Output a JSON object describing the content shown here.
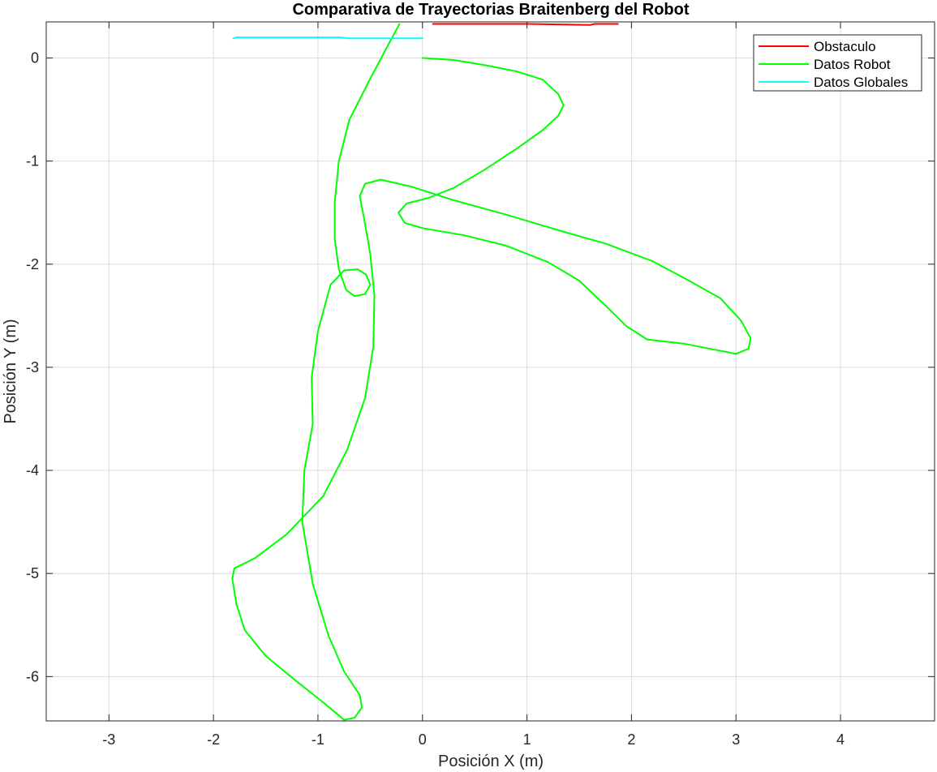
{
  "chart_data": {
    "type": "line",
    "title": "Comparativa de Trayectorias Braitenberg del Robot",
    "xlabel": "Posición X (m)",
    "ylabel": "Posición Y (m)",
    "xlim": [
      -3.6,
      4.9
    ],
    "ylim": [
      -6.43,
      0.35
    ],
    "xticks": [
      -3,
      -2,
      -1,
      0,
      1,
      2,
      3,
      4
    ],
    "yticks": [
      0,
      -1,
      -2,
      -3,
      -4,
      -5,
      -6
    ],
    "xtick_labels": [
      "-3",
      "-2",
      "-1",
      "0",
      "1",
      "2",
      "3",
      "4"
    ],
    "ytick_labels": [
      "0",
      "-1",
      "-2",
      "-3",
      "-4",
      "-5",
      "-6"
    ],
    "grid": true,
    "legend_position": "top-right",
    "series": [
      {
        "name": "Obstaculo",
        "color": "#ff0000",
        "points": [
          [
            0.1,
            0.33
          ],
          [
            1.0,
            0.33
          ],
          [
            1.6,
            0.32
          ],
          [
            1.65,
            0.33
          ],
          [
            1.87,
            0.33
          ]
        ]
      },
      {
        "name": "Datos Robot",
        "color": "#00ff00",
        "points": [
          [
            0.0,
            0.0
          ],
          [
            0.3,
            -0.02
          ],
          [
            0.6,
            -0.07
          ],
          [
            0.9,
            -0.13
          ],
          [
            1.15,
            -0.21
          ],
          [
            1.3,
            -0.35
          ],
          [
            1.35,
            -0.46
          ],
          [
            1.3,
            -0.56
          ],
          [
            1.15,
            -0.7
          ],
          [
            0.9,
            -0.88
          ],
          [
            0.6,
            -1.08
          ],
          [
            0.3,
            -1.26
          ],
          [
            0.05,
            -1.36
          ],
          [
            -0.15,
            -1.41
          ],
          [
            -0.23,
            -1.5
          ],
          [
            -0.17,
            -1.6
          ],
          [
            0.0,
            -1.65
          ],
          [
            0.4,
            -1.72
          ],
          [
            0.8,
            -1.82
          ],
          [
            1.2,
            -1.98
          ],
          [
            1.5,
            -2.16
          ],
          [
            1.75,
            -2.4
          ],
          [
            1.95,
            -2.6
          ],
          [
            2.15,
            -2.73
          ],
          [
            2.5,
            -2.77
          ],
          [
            2.8,
            -2.83
          ],
          [
            3.0,
            -2.87
          ],
          [
            3.12,
            -2.82
          ],
          [
            3.14,
            -2.72
          ],
          [
            3.05,
            -2.55
          ],
          [
            2.85,
            -2.33
          ],
          [
            2.55,
            -2.16
          ],
          [
            2.2,
            -1.97
          ],
          [
            1.75,
            -1.8
          ],
          [
            1.4,
            -1.7
          ],
          [
            0.8,
            -1.52
          ],
          [
            0.3,
            -1.38
          ],
          [
            -0.1,
            -1.25
          ],
          [
            -0.4,
            -1.18
          ],
          [
            -0.55,
            -1.22
          ],
          [
            -0.6,
            -1.34
          ],
          [
            -0.56,
            -1.55
          ],
          [
            -0.5,
            -1.9
          ],
          [
            -0.46,
            -2.3
          ],
          [
            -0.47,
            -2.8
          ],
          [
            -0.55,
            -3.3
          ],
          [
            -0.72,
            -3.8
          ],
          [
            -0.95,
            -4.25
          ],
          [
            -1.3,
            -4.62
          ],
          [
            -1.6,
            -4.85
          ],
          [
            -1.8,
            -4.95
          ],
          [
            -1.82,
            -5.05
          ],
          [
            -1.78,
            -5.3
          ],
          [
            -1.7,
            -5.55
          ],
          [
            -1.5,
            -5.8
          ],
          [
            -1.2,
            -6.05
          ],
          [
            -0.95,
            -6.25
          ],
          [
            -0.75,
            -6.42
          ],
          [
            -0.65,
            -6.4
          ],
          [
            -0.58,
            -6.3
          ],
          [
            -0.6,
            -6.18
          ],
          [
            -0.75,
            -5.95
          ],
          [
            -0.9,
            -5.6
          ],
          [
            -1.05,
            -5.1
          ],
          [
            -1.15,
            -4.5
          ],
          [
            -1.13,
            -4.0
          ],
          [
            -1.05,
            -3.55
          ],
          [
            -1.06,
            -3.1
          ],
          [
            -1.0,
            -2.65
          ],
          [
            -0.88,
            -2.2
          ],
          [
            -0.75,
            -2.06
          ],
          [
            -0.62,
            -2.05
          ],
          [
            -0.54,
            -2.1
          ],
          [
            -0.5,
            -2.2
          ],
          [
            -0.55,
            -2.29
          ],
          [
            -0.65,
            -2.31
          ],
          [
            -0.73,
            -2.25
          ],
          [
            -0.8,
            -2.05
          ],
          [
            -0.84,
            -1.75
          ],
          [
            -0.84,
            -1.4
          ],
          [
            -0.8,
            -1.0
          ],
          [
            -0.7,
            -0.6
          ],
          [
            -0.5,
            -0.2
          ],
          [
            -0.3,
            0.18
          ],
          [
            -0.22,
            0.33
          ]
        ]
      },
      {
        "name": "Datos Globales",
        "color": "#00ffff",
        "points": [
          [
            -1.81,
            0.19
          ],
          [
            -1.78,
            0.2
          ],
          [
            -1.3,
            0.2
          ],
          [
            -0.8,
            0.2
          ],
          [
            -0.7,
            0.19
          ],
          [
            0.0,
            0.19
          ]
        ]
      }
    ]
  }
}
